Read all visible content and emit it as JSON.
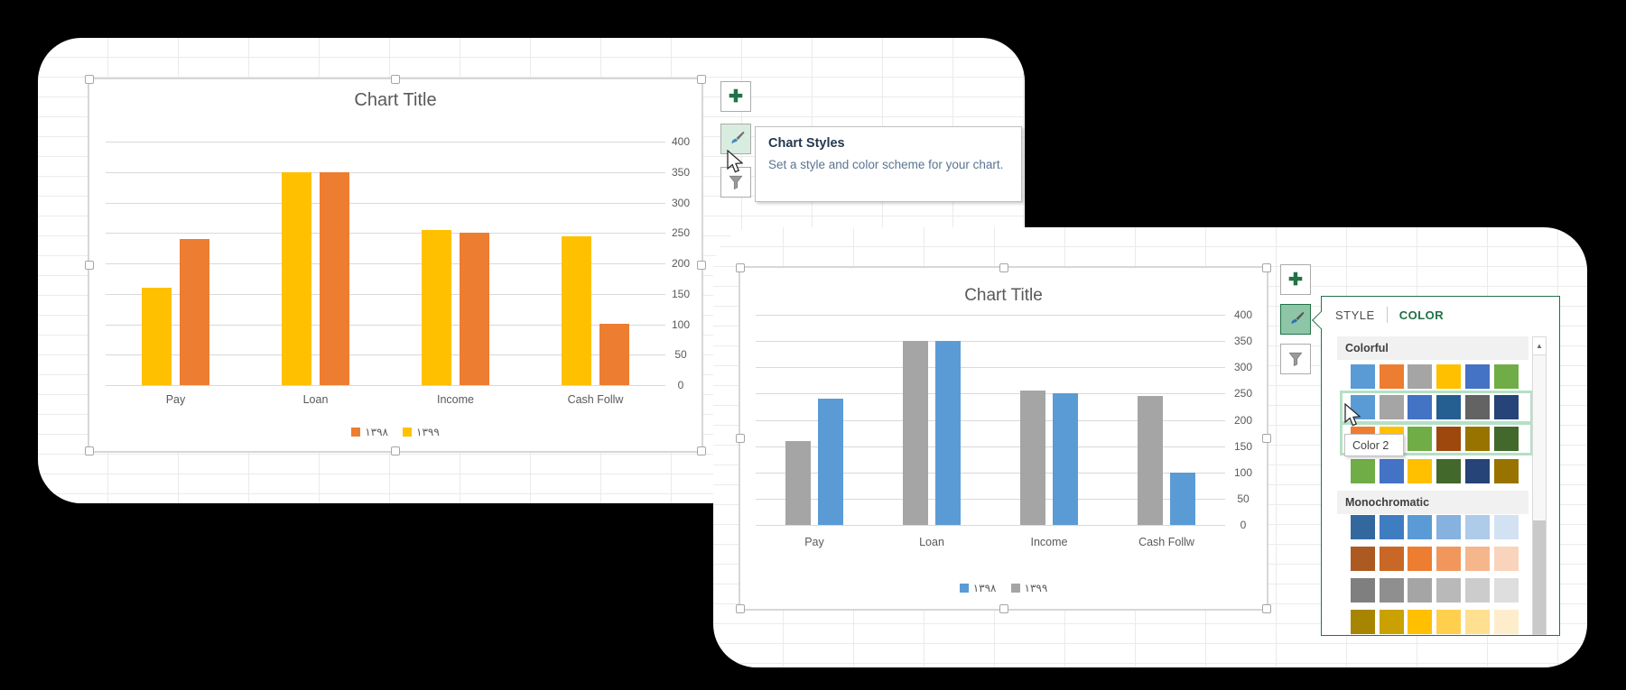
{
  "ui": {
    "back_panel": {
      "buttons": [
        {
          "icon": "plus-icon"
        },
        {
          "icon": "paintbrush-icon"
        },
        {
          "icon": "funnel-icon"
        }
      ],
      "tooltip": {
        "title": "Chart Styles",
        "body": "Set a style and color scheme for your chart."
      }
    },
    "front_panel": {
      "buttons": [
        {
          "icon": "plus-icon"
        },
        {
          "icon": "paintbrush-icon"
        },
        {
          "icon": "funnel-icon"
        }
      ],
      "style_panel": {
        "tabs": [
          "STYLE",
          "COLOR"
        ],
        "active_tab": "COLOR",
        "swatch_tooltip": "Color 2",
        "sections": [
          {
            "name": "Colorful",
            "rows": [
              {
                "highlighted": false,
                "colors": [
                  "#5B9BD5",
                  "#ED7D31",
                  "#A5A5A5",
                  "#FFC000",
                  "#4472C4",
                  "#70AD47"
                ]
              },
              {
                "highlighted": true,
                "colors": [
                  "#5B9BD5",
                  "#A5A5A5",
                  "#4472C4",
                  "#255E91",
                  "#636363",
                  "#264478"
                ]
              },
              {
                "highlighted": true,
                "colors": [
                  "#ED7D31",
                  "#FFC000",
                  "#70AD47",
                  "#9E480E",
                  "#997300",
                  "#43682B"
                ]
              },
              {
                "highlighted": false,
                "colors": [
                  "#70AD47",
                  "#4472C4",
                  "#FFC000",
                  "#43682B",
                  "#264478",
                  "#997300"
                ]
              }
            ]
          },
          {
            "name": "Monochromatic",
            "rows": [
              {
                "highlighted": false,
                "colors": [
                  "#33689E",
                  "#3E7DC1",
                  "#5B9BD5",
                  "#86B2DF",
                  "#AECBEA",
                  "#D3E2F3"
                ]
              },
              {
                "highlighted": false,
                "colors": [
                  "#AC5A21",
                  "#C96826",
                  "#ED7D31",
                  "#F2975C",
                  "#F6B68C",
                  "#FAD3BC"
                ]
              },
              {
                "highlighted": false,
                "colors": [
                  "#7F7F7F",
                  "#8F8F8F",
                  "#A5A5A5",
                  "#B9B9B9",
                  "#CCCCCC",
                  "#DEDEDE"
                ]
              },
              {
                "highlighted": false,
                "colors": [
                  "#A88500",
                  "#C9A100",
                  "#FFC000",
                  "#FFCF4D",
                  "#FFDF90",
                  "#FEEDCB"
                ]
              }
            ]
          }
        ]
      }
    }
  },
  "chart_data": [
    {
      "type": "bar",
      "title": "Chart Title",
      "categories": [
        "Pay",
        "Loan",
        "Income",
        "Cash Follw"
      ],
      "series": [
        {
          "name": "۱۳۹۸",
          "color": "#ED7D31",
          "values": [
            240,
            350,
            250,
            100
          ]
        },
        {
          "name": "۱۳۹۹",
          "color": "#FFC000",
          "values": [
            160,
            350,
            255,
            245
          ]
        }
      ],
      "ylim": [
        0,
        400
      ],
      "y_ticks": [
        0,
        50,
        100,
        150,
        200,
        250,
        300,
        350,
        400
      ],
      "axis_side": "right",
      "legend_position": "bottom",
      "grid": true
    },
    {
      "type": "bar",
      "title": "Chart Title",
      "categories": [
        "Pay",
        "Loan",
        "Income",
        "Cash Follw"
      ],
      "series": [
        {
          "name": "۱۳۹۸",
          "color": "#5B9BD5",
          "values": [
            240,
            350,
            250,
            100
          ]
        },
        {
          "name": "۱۳۹۹",
          "color": "#A5A5A5",
          "values": [
            160,
            350,
            255,
            245
          ]
        }
      ],
      "ylim": [
        0,
        400
      ],
      "y_ticks": [
        0,
        50,
        100,
        150,
        200,
        250,
        300,
        350,
        400
      ],
      "axis_side": "right",
      "legend_position": "bottom",
      "grid": true
    }
  ]
}
